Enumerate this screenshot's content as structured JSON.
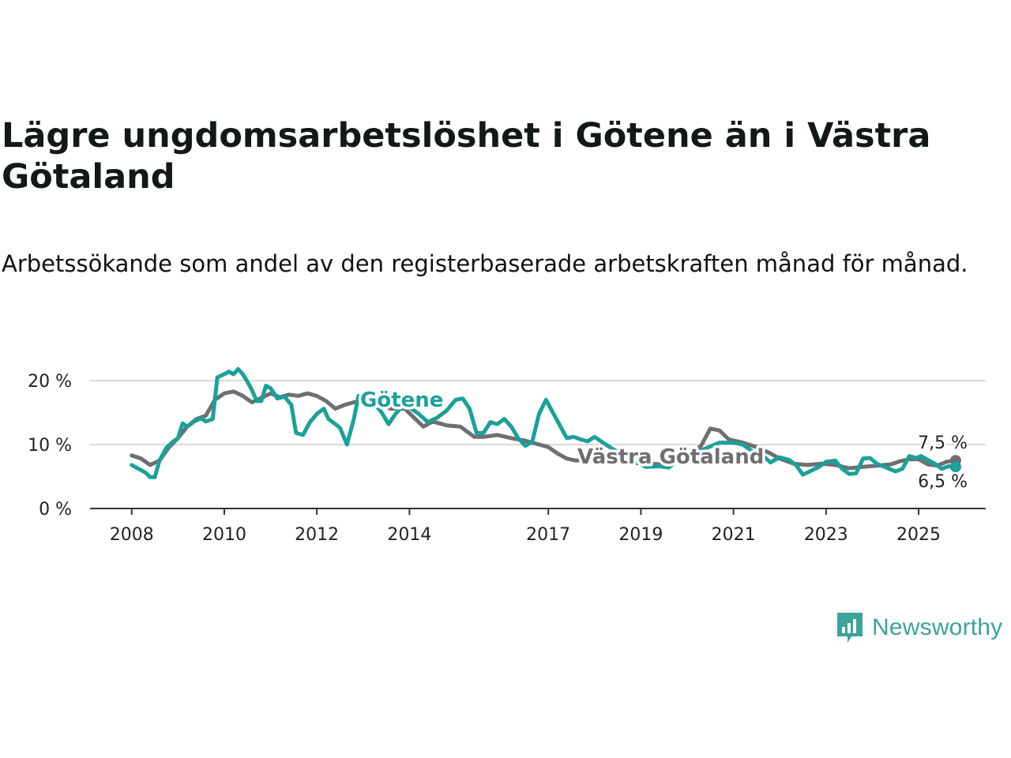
{
  "title": "Lägre ungdomsarbetslöshet i Götene än i Västra Götaland",
  "subtitle": "Arbetssökande som andel av den registerbaserade arbetskraften månad för månad.",
  "brand": {
    "name": "Newsworthy",
    "color": "#3aa39a",
    "icon": "newsworthy-logo-icon"
  },
  "chart_data": {
    "type": "line",
    "ylim": [
      0,
      20
    ],
    "yticks": [
      0,
      10,
      20
    ],
    "ytick_labels": [
      "0 %",
      "10 %",
      "20 %"
    ],
    "xlim": [
      2008,
      2025.83
    ],
    "xticks": [
      2008,
      2010,
      2012,
      2014,
      2017,
      2019,
      2021,
      2023,
      2025
    ],
    "xtick_labels": [
      "2008",
      "2010",
      "2012",
      "2014",
      "2017",
      "2019",
      "2021",
      "2023",
      "2025"
    ],
    "grid": true,
    "series": [
      {
        "name": "Västra Götaland",
        "color": "#6e6e73",
        "end_label": "7,5 %",
        "points": [
          [
            2008.0,
            8.3
          ],
          [
            2008.2,
            7.8
          ],
          [
            2008.4,
            6.8
          ],
          [
            2008.6,
            7.5
          ],
          [
            2008.8,
            9.5
          ],
          [
            2009.0,
            11.0
          ],
          [
            2009.2,
            12.8
          ],
          [
            2009.4,
            14.0
          ],
          [
            2009.6,
            14.5
          ],
          [
            2009.8,
            17.0
          ],
          [
            2010.0,
            18.0
          ],
          [
            2010.2,
            18.3
          ],
          [
            2010.4,
            17.6
          ],
          [
            2010.6,
            16.6
          ],
          [
            2010.8,
            17.3
          ],
          [
            2011.0,
            18.0
          ],
          [
            2011.2,
            17.4
          ],
          [
            2011.4,
            17.8
          ],
          [
            2011.6,
            17.6
          ],
          [
            2011.8,
            18.0
          ],
          [
            2012.0,
            17.6
          ],
          [
            2012.2,
            16.8
          ],
          [
            2012.4,
            15.6
          ],
          [
            2012.6,
            16.2
          ],
          [
            2012.8,
            16.6
          ],
          [
            2013.0,
            16.8
          ],
          [
            2013.3,
            16.4
          ],
          [
            2013.6,
            15.6
          ],
          [
            2013.9,
            15.6
          ],
          [
            2014.1,
            14.2
          ],
          [
            2014.3,
            12.8
          ],
          [
            2014.5,
            13.6
          ],
          [
            2014.8,
            13.0
          ],
          [
            2015.1,
            12.8
          ],
          [
            2015.4,
            11.2
          ],
          [
            2015.6,
            11.2
          ],
          [
            2015.9,
            11.5
          ],
          [
            2016.2,
            11.0
          ],
          [
            2016.5,
            10.6
          ],
          [
            2016.8,
            10.0
          ],
          [
            2017.0,
            9.6
          ],
          [
            2017.2,
            8.6
          ],
          [
            2017.4,
            7.8
          ],
          [
            2017.6,
            7.5
          ],
          [
            2017.9,
            7.7
          ],
          [
            2018.2,
            8.0
          ],
          [
            2018.5,
            7.4
          ],
          [
            2018.8,
            7.1
          ],
          [
            2019.1,
            7.1
          ],
          [
            2019.4,
            6.9
          ],
          [
            2019.7,
            7.3
          ],
          [
            2020.0,
            7.8
          ],
          [
            2020.3,
            9.8
          ],
          [
            2020.5,
            12.5
          ],
          [
            2020.7,
            12.2
          ],
          [
            2020.9,
            10.8
          ],
          [
            2021.2,
            10.3
          ],
          [
            2021.5,
            9.6
          ],
          [
            2021.8,
            8.6
          ],
          [
            2022.0,
            7.8
          ],
          [
            2022.3,
            7.0
          ],
          [
            2022.6,
            6.8
          ],
          [
            2022.9,
            7.0
          ],
          [
            2023.2,
            6.8
          ],
          [
            2023.5,
            6.3
          ],
          [
            2023.8,
            6.5
          ],
          [
            2024.1,
            6.7
          ],
          [
            2024.4,
            6.9
          ],
          [
            2024.6,
            7.4
          ],
          [
            2024.8,
            7.7
          ],
          [
            2025.0,
            7.7
          ],
          [
            2025.2,
            6.9
          ],
          [
            2025.4,
            6.7
          ],
          [
            2025.6,
            7.3
          ],
          [
            2025.8,
            7.5
          ]
        ]
      },
      {
        "name": "Götene",
        "color": "#1aa199",
        "end_label": "6,5 %",
        "points": [
          [
            2008.0,
            6.8
          ],
          [
            2008.15,
            6.2
          ],
          [
            2008.3,
            5.6
          ],
          [
            2008.4,
            4.9
          ],
          [
            2008.5,
            4.9
          ],
          [
            2008.6,
            7.5
          ],
          [
            2008.75,
            9.5
          ],
          [
            2008.9,
            10.5
          ],
          [
            2009.0,
            11.0
          ],
          [
            2009.1,
            13.3
          ],
          [
            2009.2,
            12.8
          ],
          [
            2009.35,
            13.6
          ],
          [
            2009.5,
            14.1
          ],
          [
            2009.6,
            13.6
          ],
          [
            2009.75,
            14.0
          ],
          [
            2009.85,
            20.5
          ],
          [
            2010.0,
            21.0
          ],
          [
            2010.1,
            21.4
          ],
          [
            2010.2,
            21.0
          ],
          [
            2010.3,
            21.8
          ],
          [
            2010.4,
            21.0
          ],
          [
            2010.5,
            19.8
          ],
          [
            2010.6,
            18.5
          ],
          [
            2010.7,
            16.8
          ],
          [
            2010.8,
            16.8
          ],
          [
            2010.9,
            19.2
          ],
          [
            2011.0,
            18.8
          ],
          [
            2011.15,
            17.2
          ],
          [
            2011.3,
            17.5
          ],
          [
            2011.45,
            16.2
          ],
          [
            2011.55,
            11.8
          ],
          [
            2011.7,
            11.5
          ],
          [
            2011.85,
            13.5
          ],
          [
            2012.0,
            14.8
          ],
          [
            2012.15,
            15.6
          ],
          [
            2012.25,
            14.0
          ],
          [
            2012.4,
            13.2
          ],
          [
            2012.5,
            12.6
          ],
          [
            2012.65,
            10.0
          ],
          [
            2012.8,
            14.0
          ],
          [
            2012.9,
            17.6
          ],
          [
            2013.0,
            17.0
          ],
          [
            2013.1,
            18.0
          ],
          [
            2013.25,
            16.4
          ],
          [
            2013.4,
            15.0
          ],
          [
            2013.55,
            13.2
          ],
          [
            2013.7,
            14.8
          ],
          [
            2013.85,
            16.0
          ],
          [
            2014.0,
            15.8
          ],
          [
            2014.2,
            14.8
          ],
          [
            2014.4,
            13.5
          ],
          [
            2014.6,
            14.2
          ],
          [
            2014.8,
            15.3
          ],
          [
            2015.0,
            17.0
          ],
          [
            2015.15,
            17.2
          ],
          [
            2015.3,
            15.6
          ],
          [
            2015.45,
            11.8
          ],
          [
            2015.6,
            11.8
          ],
          [
            2015.75,
            13.5
          ],
          [
            2015.9,
            13.2
          ],
          [
            2016.05,
            14.0
          ],
          [
            2016.2,
            12.8
          ],
          [
            2016.35,
            11.0
          ],
          [
            2016.5,
            9.8
          ],
          [
            2016.65,
            10.4
          ],
          [
            2016.8,
            14.8
          ],
          [
            2016.95,
            17.0
          ],
          [
            2017.1,
            15.0
          ],
          [
            2017.25,
            13.0
          ],
          [
            2017.4,
            11.0
          ],
          [
            2017.55,
            11.2
          ],
          [
            2017.7,
            10.8
          ],
          [
            2017.85,
            10.5
          ],
          [
            2018.0,
            11.2
          ],
          [
            2018.2,
            10.2
          ],
          [
            2018.5,
            8.8
          ],
          [
            2018.8,
            7.8
          ],
          [
            2019.1,
            6.5
          ],
          [
            2019.4,
            6.6
          ],
          [
            2019.6,
            6.4
          ],
          [
            2019.8,
            7.6
          ],
          [
            2020.1,
            8.4
          ],
          [
            2020.4,
            9.4
          ],
          [
            2020.7,
            10.3
          ],
          [
            2021.0,
            10.3
          ],
          [
            2021.2,
            10.0
          ],
          [
            2021.4,
            9.0
          ],
          [
            2021.6,
            8.5
          ],
          [
            2021.8,
            7.2
          ],
          [
            2022.0,
            8.0
          ],
          [
            2022.2,
            7.6
          ],
          [
            2022.35,
            6.8
          ],
          [
            2022.5,
            5.3
          ],
          [
            2022.65,
            5.8
          ],
          [
            2022.85,
            6.5
          ],
          [
            2023.0,
            7.3
          ],
          [
            2023.2,
            7.5
          ],
          [
            2023.35,
            6.2
          ],
          [
            2023.5,
            5.4
          ],
          [
            2023.65,
            5.5
          ],
          [
            2023.8,
            7.8
          ],
          [
            2023.95,
            7.9
          ],
          [
            2024.1,
            7.0
          ],
          [
            2024.3,
            6.4
          ],
          [
            2024.5,
            5.8
          ],
          [
            2024.65,
            6.2
          ],
          [
            2024.8,
            8.2
          ],
          [
            2024.95,
            7.9
          ],
          [
            2025.05,
            8.2
          ],
          [
            2025.2,
            7.6
          ],
          [
            2025.35,
            7.0
          ],
          [
            2025.5,
            6.2
          ],
          [
            2025.65,
            6.6
          ],
          [
            2025.8,
            6.5
          ]
        ]
      }
    ]
  }
}
